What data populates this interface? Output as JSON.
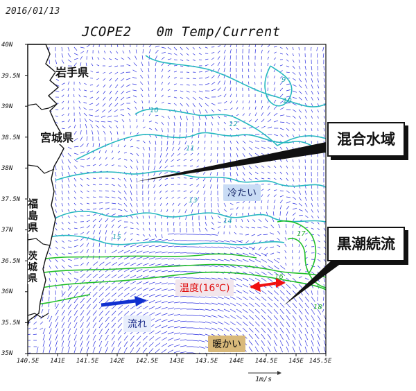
{
  "header": {
    "date": "2016/01/13",
    "model": "JCOPE2",
    "layer": "0m Temp/Current"
  },
  "prefectures": [
    "岩手県",
    "宮城県",
    "福島県",
    "茨城県"
  ],
  "callouts": {
    "mixed_water": "混合水域",
    "kuroshio_extension": "黒潮続流"
  },
  "annotations": {
    "cold": "冷たい",
    "warm": "暖かい",
    "flow": "流れ",
    "temperature": "温度(16℃)"
  },
  "axes": {
    "lat_labels": [
      "40N",
      "39.5N",
      "39N",
      "38.5N",
      "38N",
      "37.5N",
      "37N",
      "36.5N",
      "36N",
      "35.5N",
      "35N"
    ],
    "lon_labels": [
      "140.5E",
      "141E",
      "141.5E",
      "142E",
      "142.5E",
      "143E",
      "143.5E",
      "144E",
      "144.5E",
      "145E",
      "145.5E"
    ],
    "vector_unit": "1m/s"
  },
  "contour_labels": [
    "10",
    "9",
    "10",
    "11",
    "12",
    "13",
    "14",
    "15",
    "16",
    "17",
    "18"
  ],
  "colors": {
    "current_vectors": "#2a2ee0",
    "sst_contour_cool": "#26b8c0",
    "sst_contour_warm": "#22c02a",
    "highlight_arrow_red": "#f01010",
    "highlight_arrow_blue": "#1030d0",
    "cold_tag_bg": "#c9dcf5",
    "warm_tag_bg": "#d9b97a"
  }
}
